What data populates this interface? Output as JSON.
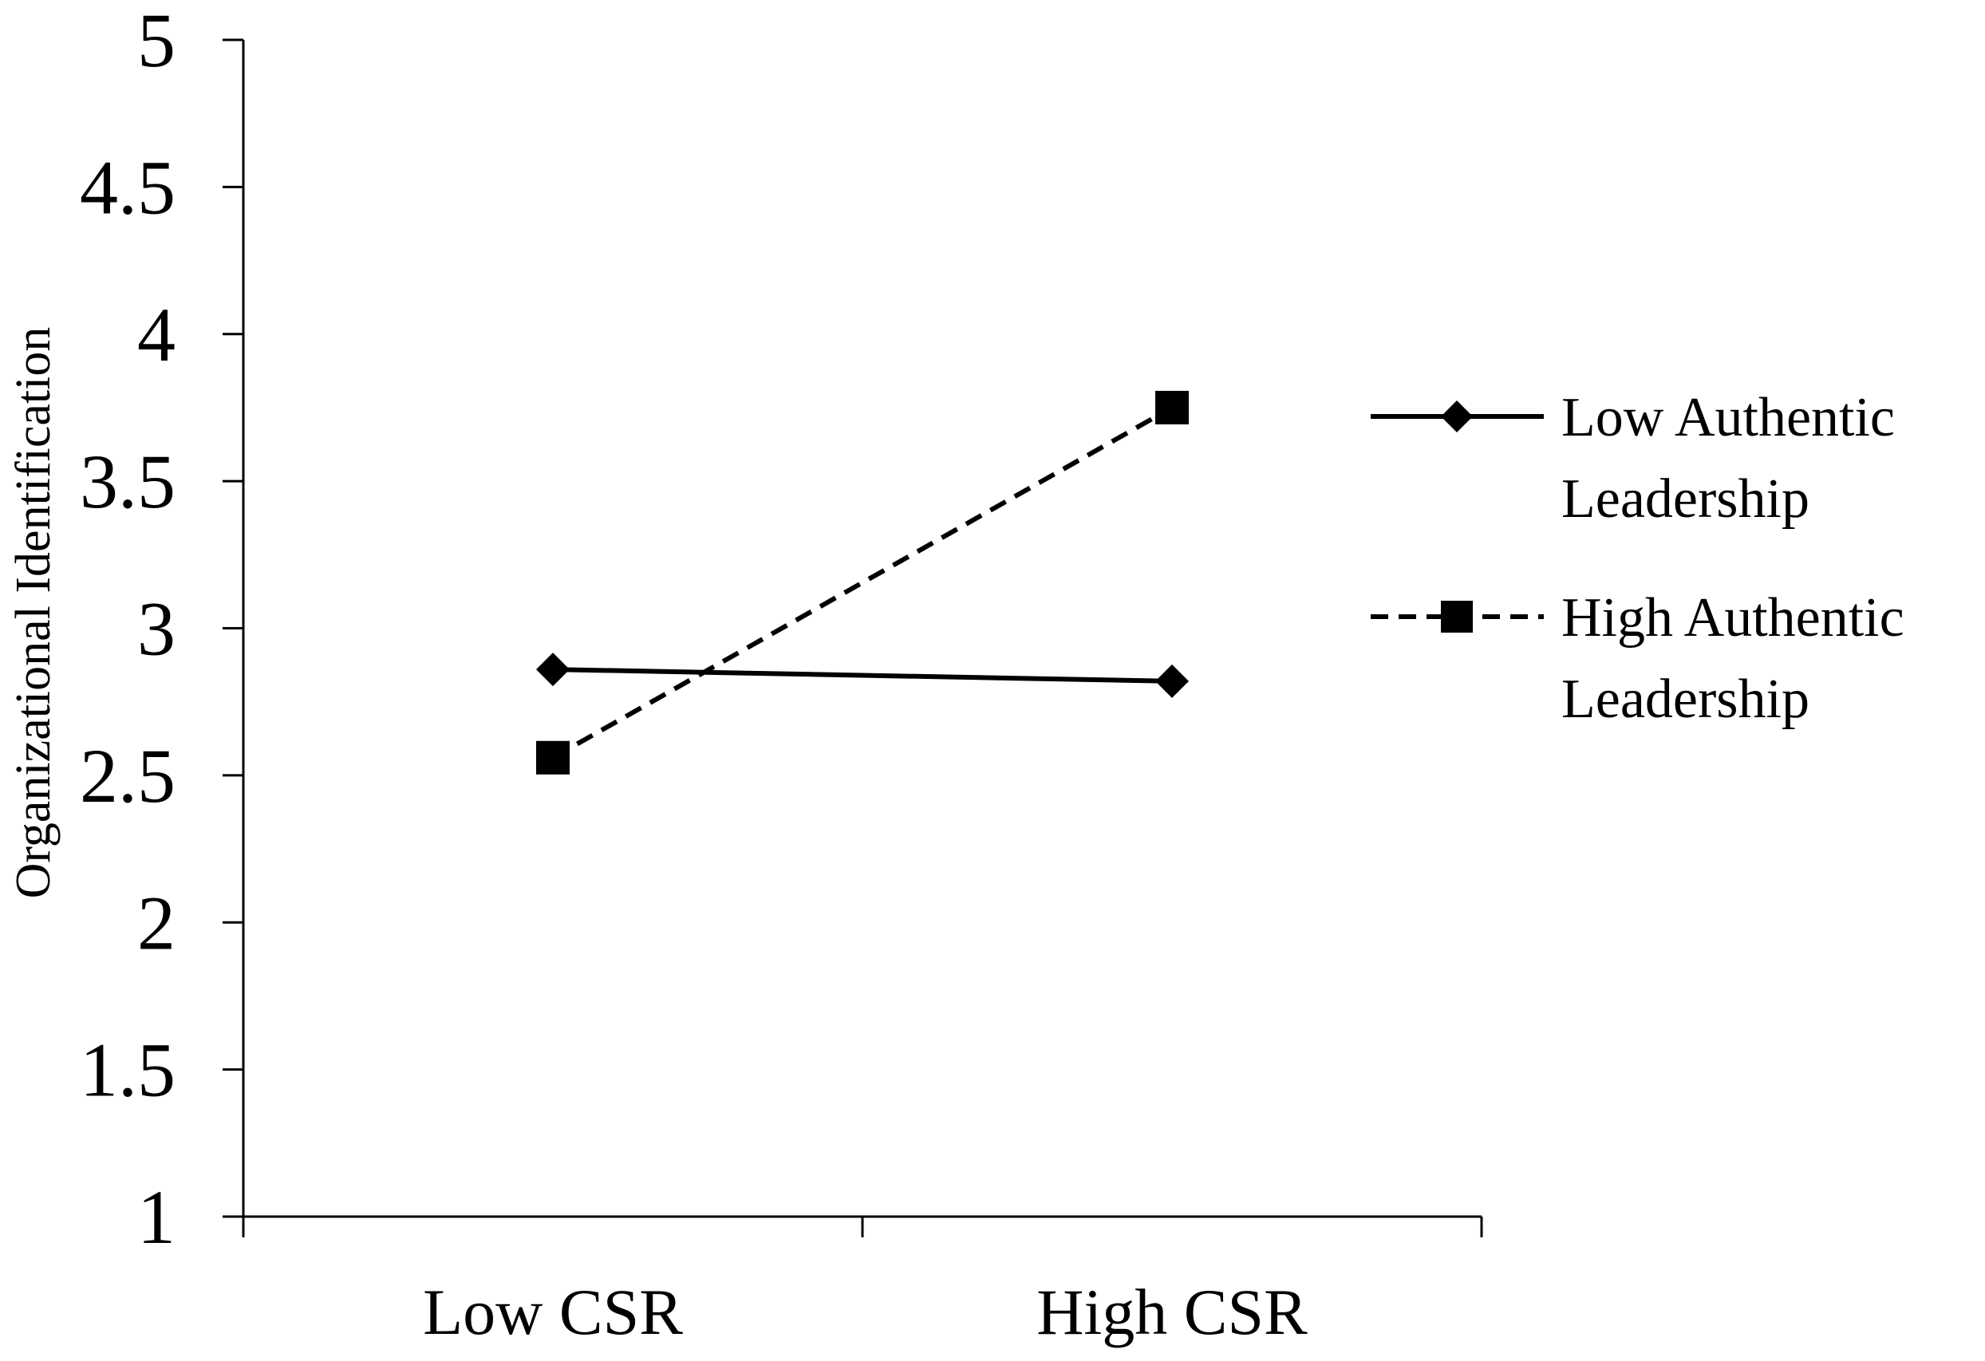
{
  "chart_data": {
    "type": "line",
    "title": "",
    "xlabel": "",
    "ylabel": "Organizational Identification",
    "categories": [
      "Low CSR",
      "High CSR"
    ],
    "ylim": [
      1,
      5
    ],
    "yticks": [
      "1",
      "1.5",
      "2",
      "2.5",
      "3",
      "3.5",
      "4",
      "4.5",
      "5"
    ],
    "grid": false,
    "legend_position": "right",
    "series": [
      {
        "name": "Low Authentic Leadership",
        "legend_lines": [
          "Low Authentic",
          "Leadership"
        ],
        "values": [
          2.86,
          2.82
        ],
        "line_style": "solid",
        "marker": "diamond",
        "color": "#000000"
      },
      {
        "name": "High Authentic Leadership",
        "legend_lines": [
          "High Authentic",
          "Leadership"
        ],
        "values": [
          2.56,
          3.75
        ],
        "line_style": "dashed",
        "marker": "square",
        "color": "#000000"
      }
    ]
  }
}
